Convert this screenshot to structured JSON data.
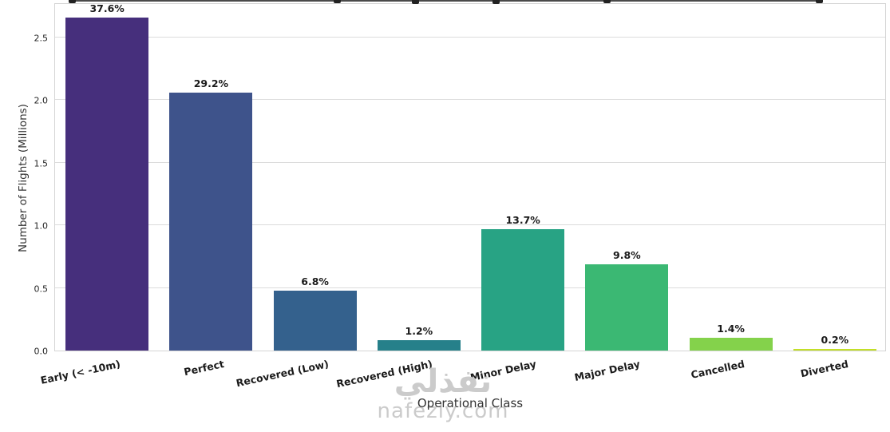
{
  "watermark": {
    "arabic": "نفذلي",
    "domain": "nafezly.com"
  },
  "chart_data": {
    "type": "bar",
    "title": "",
    "xlabel": "Operational Class",
    "ylabel": "Number of Flights (Millions)",
    "categories": [
      "Early (< -10m)",
      "Perfect",
      "Recovered (Low)",
      "Recovered (High)",
      "Minor Delay",
      "Major Delay",
      "Cancelled",
      "Diverted"
    ],
    "values": [
      2.66,
      2.06,
      0.48,
      0.085,
      0.97,
      0.69,
      0.1,
      0.015
    ],
    "bar_labels": [
      "37.6%",
      "29.2%",
      "6.8%",
      "1.2%",
      "13.7%",
      "9.8%",
      "1.4%",
      "0.2%"
    ],
    "bar_colors": [
      "#462f7c",
      "#3e538b",
      "#34618d",
      "#26808a",
      "#28a384",
      "#3bb873",
      "#84d24b",
      "#c3df28"
    ],
    "yticks": [
      0.0,
      0.5,
      1.0,
      1.5,
      2.0,
      2.5
    ],
    "ylim": [
      0,
      2.78
    ],
    "grid": true,
    "legend": false,
    "bar_width_ratio": 0.8
  }
}
